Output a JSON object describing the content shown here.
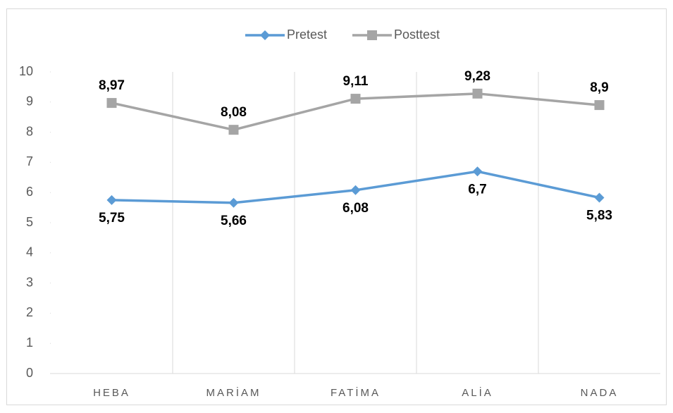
{
  "chart_data": {
    "type": "line",
    "categories": [
      "HEBA",
      "MARİAM",
      "FATİMA",
      "ALİA",
      "NADA"
    ],
    "series": [
      {
        "name": "Pretest",
        "color": "#5b9bd5",
        "marker": "diamond",
        "label_position": "below",
        "values": [
          5.75,
          5.66,
          6.08,
          6.7,
          5.83
        ],
        "value_labels": [
          "5,75",
          "5,66",
          "6,08",
          "6,7",
          "5,83"
        ]
      },
      {
        "name": "Posttest",
        "color": "#a5a5a5",
        "marker": "square",
        "label_position": "above",
        "values": [
          8.97,
          8.08,
          9.11,
          9.28,
          8.9
        ],
        "value_labels": [
          "8,97",
          "8,08",
          "9,11",
          "9,28",
          "8,9"
        ]
      }
    ],
    "ylim": [
      0,
      10
    ],
    "yticks": [
      0,
      1,
      2,
      3,
      4,
      5,
      6,
      7,
      8,
      9,
      10
    ],
    "legend": "top"
  }
}
